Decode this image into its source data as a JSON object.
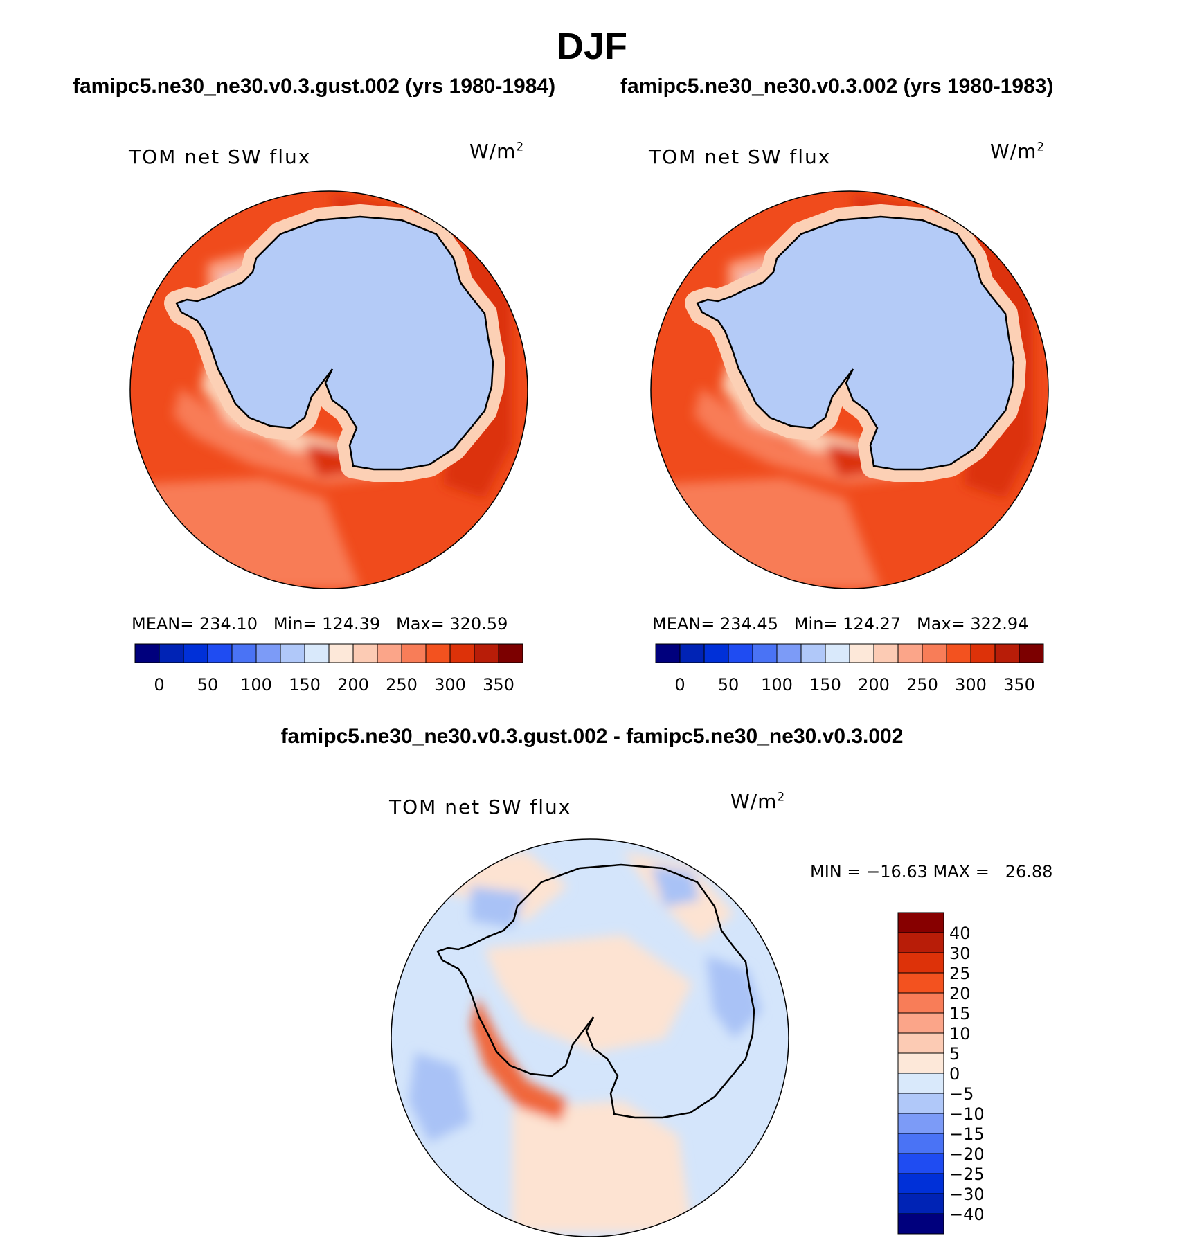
{
  "page": {
    "title": "DJF",
    "left_subtitle": "famipc5.ne30_ne30.v0.3.gust.002 (yrs 1980-1984)",
    "right_subtitle": "famipc5.ne30_ne30.v0.3.002 (yrs 1980-1983)",
    "diff_subtitle": "famipc5.ne30_ne30.v0.3.gust.002 - famipc5.ne30_ne30.v0.3.002"
  },
  "panels": {
    "left": {
      "variable": "TOM net SW flux",
      "units_base": "W/m",
      "units_exp": "2",
      "stats": "MEAN= 234.10   Min= 124.39   Max= 320.59"
    },
    "right": {
      "variable": "TOM net SW flux",
      "units_base": "W/m",
      "units_exp": "2",
      "stats": "MEAN= 234.45   Min= 124.27   Max= 322.94"
    },
    "diff": {
      "variable": "TOM net SW flux",
      "units_base": "W/m",
      "units_exp": "2",
      "stats": "MIN = −16.63 MAX =   26.88"
    }
  },
  "colorbars": {
    "absolute": {
      "colors": [
        "#00007d",
        "#0023b5",
        "#0030d8",
        "#1f4cf2",
        "#4a73f5",
        "#7c9bf7",
        "#b0c8f9",
        "#d9e9fb",
        "#fde8d9",
        "#fccbb4",
        "#fba589",
        "#f87d58",
        "#f3521f",
        "#dd3209",
        "#b81d08",
        "#7c0000"
      ],
      "labels": [
        "0",
        "50",
        "100",
        "150",
        "200",
        "250",
        "300",
        "350"
      ]
    },
    "difference": {
      "colors_top_to_bottom": [
        "#870000",
        "#b81d08",
        "#dd3209",
        "#f3521f",
        "#f87d58",
        "#fba589",
        "#fccbb4",
        "#fde8d9",
        "#d9e9fb",
        "#b0c8f9",
        "#7c9bf7",
        "#4a73f5",
        "#1f4cf2",
        "#0030d8",
        "#0023b5",
        "#00007d"
      ],
      "labels_top_to_bottom": [
        "40",
        "30",
        "25",
        "20",
        "15",
        "10",
        "5",
        "0",
        "−5",
        "−10",
        "−15",
        "−20",
        "−25",
        "−30",
        "−40"
      ]
    }
  },
  "map_colors": {
    "antarctica": "#b4cbf7",
    "ocean_main": "#f04b1c",
    "ocean_dark": "#dc330b",
    "ocean_light": "#f87b56",
    "coast_pale": "#fcd0b5",
    "diff_base": "#d4e5fb",
    "diff_pos": "#fde3d2",
    "diff_neg": "#a9c2f6",
    "diff_strong_pos": "#f0663a"
  }
}
